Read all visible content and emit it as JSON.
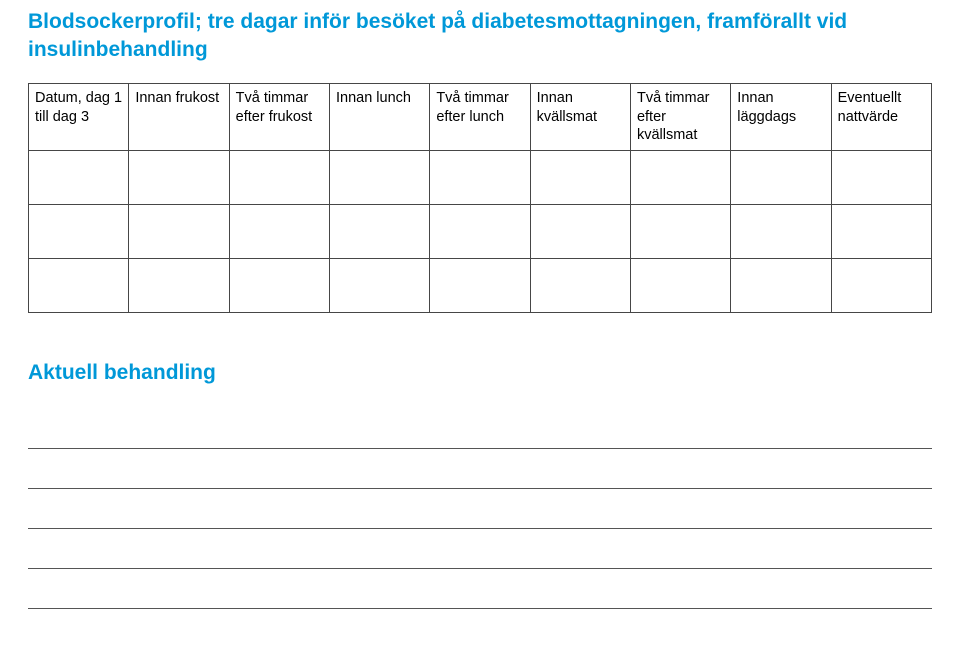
{
  "title_color": "#0098d8",
  "title": "Blodsockerprofil; tre dagar inför besöket på diabetesmottagningen, framförallt vid insulinbehandling",
  "table": {
    "columns": [
      "Datum,\ndag 1 till dag 3",
      "Innan frukost",
      "Två timmar efter frukost",
      "Innan lunch",
      "Två timmar efter lunch",
      "Innan kvällsmat",
      "Två timmar efter kvällsmat",
      "Innan läggdags",
      "Eventuellt nattvärde"
    ],
    "data_row_count": 3,
    "border_color": "#464646",
    "body_text_color": "#000000"
  },
  "subtitle": "Aktuell behandling",
  "blank_lines": 5
}
